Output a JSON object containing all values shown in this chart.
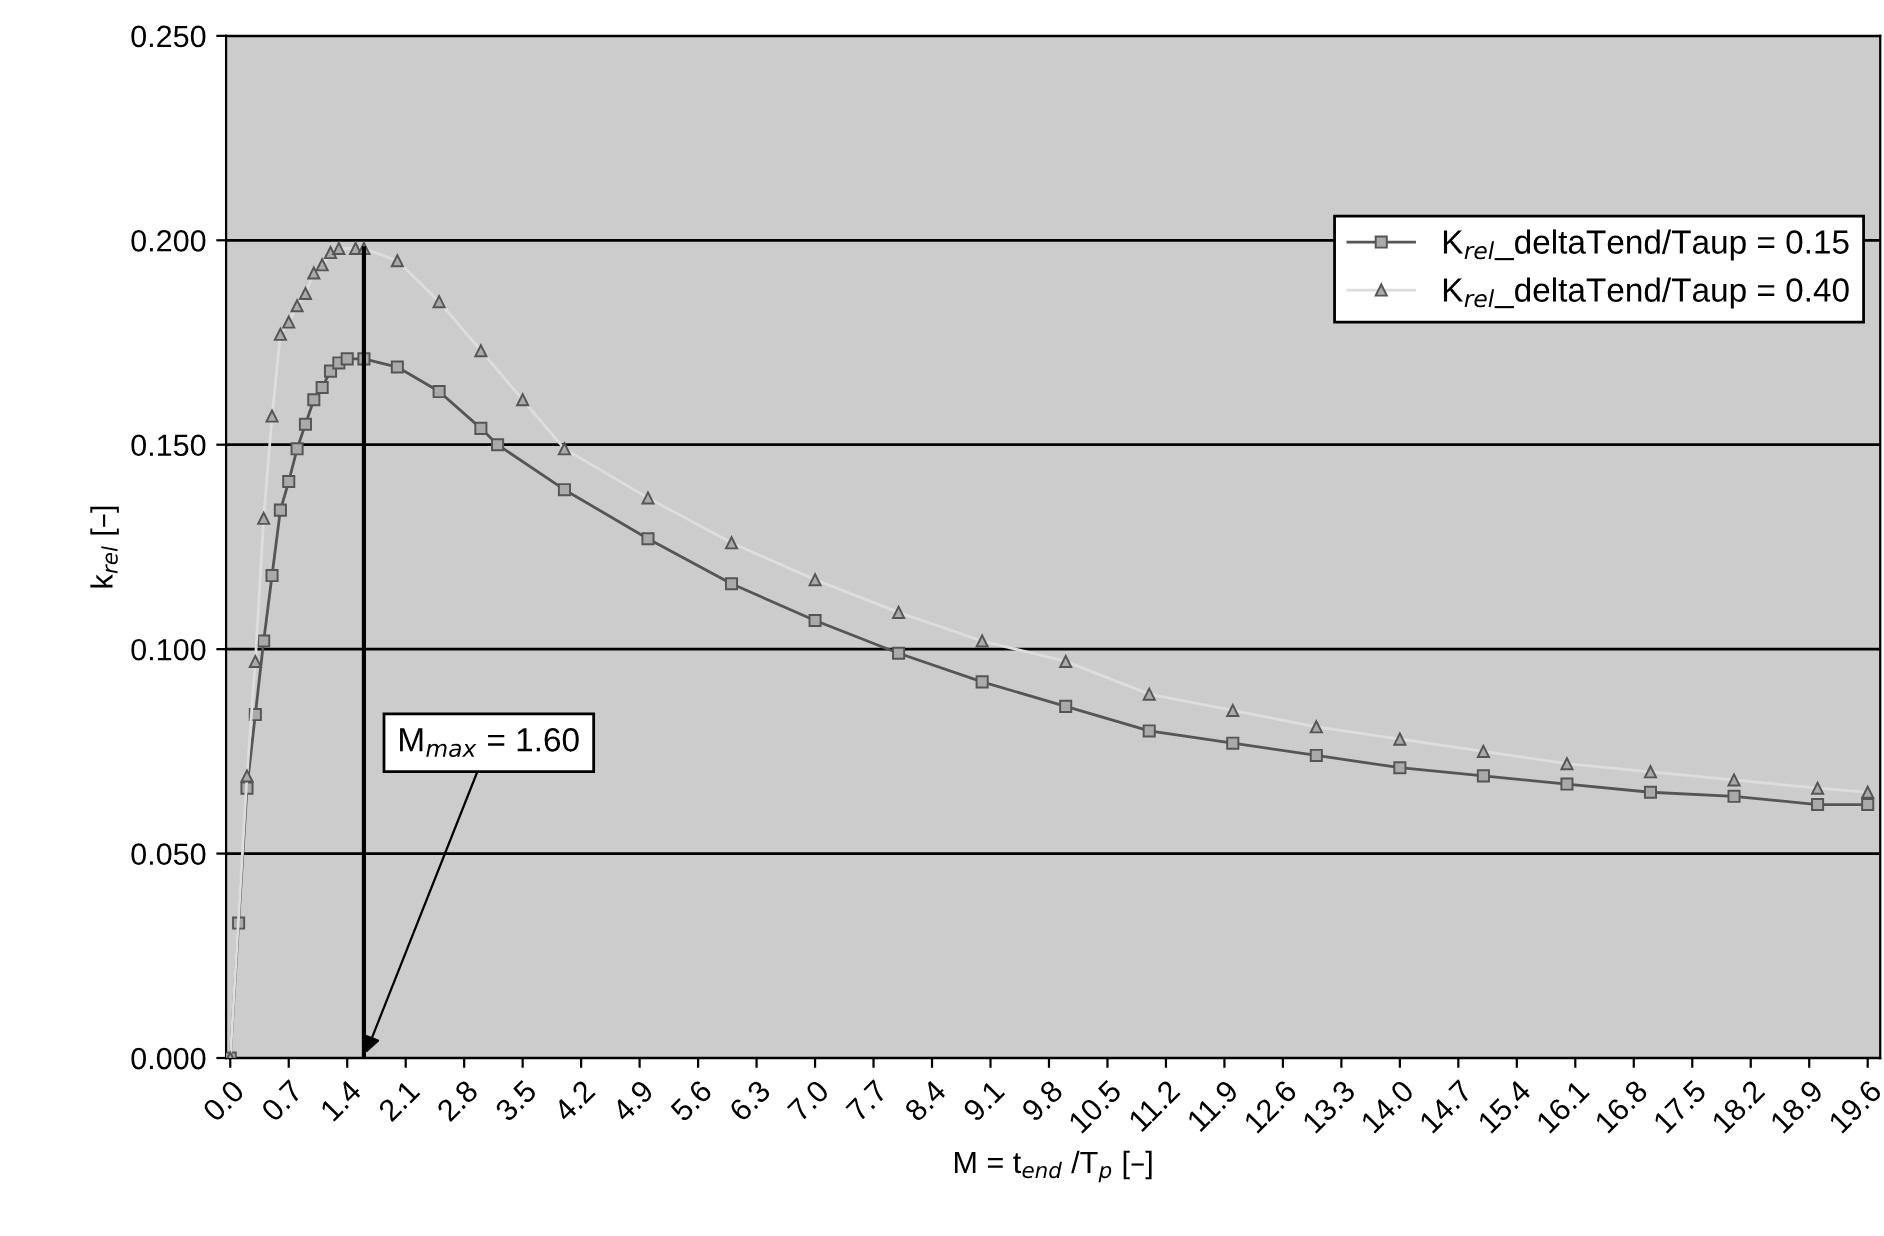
{
  "chart_data": {
    "type": "line",
    "xlabel": "M = t$_{end}$ /T$_{p}$ [–]",
    "ylabel": "k$_{rel}$ [–]",
    "xlim": [
      -0.05,
      19.75
    ],
    "ylim": [
      0,
      0.25
    ],
    "xticks": [
      {
        "value": 0.0,
        "label": "0.0"
      },
      {
        "value": 0.7,
        "label": "0.7"
      },
      {
        "value": 1.4,
        "label": "1.4"
      },
      {
        "value": 2.1,
        "label": "2.1"
      },
      {
        "value": 2.8,
        "label": "2.8"
      },
      {
        "value": 3.5,
        "label": "3.5"
      },
      {
        "value": 4.2,
        "label": "4.2"
      },
      {
        "value": 4.9,
        "label": "4.9"
      },
      {
        "value": 5.6,
        "label": "5.6"
      },
      {
        "value": 6.3,
        "label": "6.3"
      },
      {
        "value": 7.0,
        "label": "7.0"
      },
      {
        "value": 7.7,
        "label": "7.7"
      },
      {
        "value": 8.4,
        "label": "8.4"
      },
      {
        "value": 9.1,
        "label": "9.1"
      },
      {
        "value": 9.8,
        "label": "9.8"
      },
      {
        "value": 10.5,
        "label": "10.5"
      },
      {
        "value": 11.2,
        "label": "11.2"
      },
      {
        "value": 11.9,
        "label": "11.9"
      },
      {
        "value": 12.6,
        "label": "12.6"
      },
      {
        "value": 13.3,
        "label": "13.3"
      },
      {
        "value": 14.0,
        "label": "14.0"
      },
      {
        "value": 14.7,
        "label": "14.7"
      },
      {
        "value": 15.4,
        "label": "15.4"
      },
      {
        "value": 16.1,
        "label": "16.1"
      },
      {
        "value": 16.8,
        "label": "16.8"
      },
      {
        "value": 17.5,
        "label": "17.5"
      },
      {
        "value": 18.2,
        "label": "18.2"
      },
      {
        "value": 18.9,
        "label": "18.9"
      },
      {
        "value": 19.6,
        "label": "19.6"
      }
    ],
    "yticks": [
      {
        "value": 0,
        "label": "0.000"
      },
      {
        "value": 0.05,
        "label": "0.050"
      },
      {
        "value": 0.1,
        "label": "0.100"
      },
      {
        "value": 0.15,
        "label": "0.150"
      },
      {
        "value": 0.2,
        "label": "0.200"
      },
      {
        "value": 0.25,
        "label": "0.250"
      }
    ],
    "grid": "y",
    "legend": "top right",
    "series": [
      {
        "name": "K$_{rel}$_deltaTend/Taup = 0.15",
        "color": "#555555",
        "marker": "square",
        "x": [
          0,
          0.1,
          0.2,
          0.3,
          0.4,
          0.5,
          0.6,
          0.7,
          0.8,
          0.9,
          1.0,
          1.1,
          1.2,
          1.3,
          1.4,
          1.6,
          2.0,
          2.5,
          3.0,
          3.2,
          4,
          5,
          6,
          7,
          8,
          9,
          10,
          11,
          12,
          13,
          14,
          15,
          16,
          17,
          18,
          19,
          19.6
        ],
        "values": [
          0,
          0.033,
          0.066,
          0.084,
          0.102,
          0.118,
          0.134,
          0.141,
          0.149,
          0.155,
          0.161,
          0.164,
          0.168,
          0.17,
          0.171,
          0.171,
          0.169,
          0.163,
          0.154,
          0.15,
          0.139,
          0.127,
          0.116,
          0.107,
          0.099,
          0.092,
          0.086,
          0.08,
          0.077,
          0.074,
          0.071,
          0.069,
          0.067,
          0.065,
          0.064,
          0.062,
          0.062
        ]
      },
      {
        "name": "K$_{rel}$_deltaTend/Taup = 0.40",
        "color": "#dddddd",
        "marker": "triangle",
        "x": [
          0,
          0.2,
          0.3,
          0.4,
          0.5,
          0.6,
          0.7,
          0.8,
          0.9,
          1.0,
          1.1,
          1.2,
          1.3,
          1.5,
          1.6,
          2.0,
          2.5,
          3.0,
          3.5,
          4,
          5,
          6,
          7,
          8,
          9,
          10,
          11,
          12,
          13,
          14,
          15,
          16,
          17,
          18,
          19,
          19.6
        ],
        "values": [
          0,
          0.069,
          0.097,
          0.132,
          0.157,
          0.177,
          0.18,
          0.184,
          0.187,
          0.192,
          0.194,
          0.197,
          0.198,
          0.198,
          0.198,
          0.195,
          0.185,
          0.173,
          0.161,
          0.149,
          0.137,
          0.126,
          0.117,
          0.109,
          0.102,
          0.097,
          0.089,
          0.085,
          0.081,
          0.078,
          0.075,
          0.072,
          0.07,
          0.068,
          0.066,
          0.065
        ]
      },
      {
        "color": "#000000",
        "marker": "none",
        "x": [
          1.6,
          1.6
        ],
        "values": [
          0,
          0.198
        ]
      }
    ],
    "annotations": [
      {
        "text": "M$_{max}$ = 1.60",
        "x": 1.6,
        "y": 0
      }
    ]
  }
}
